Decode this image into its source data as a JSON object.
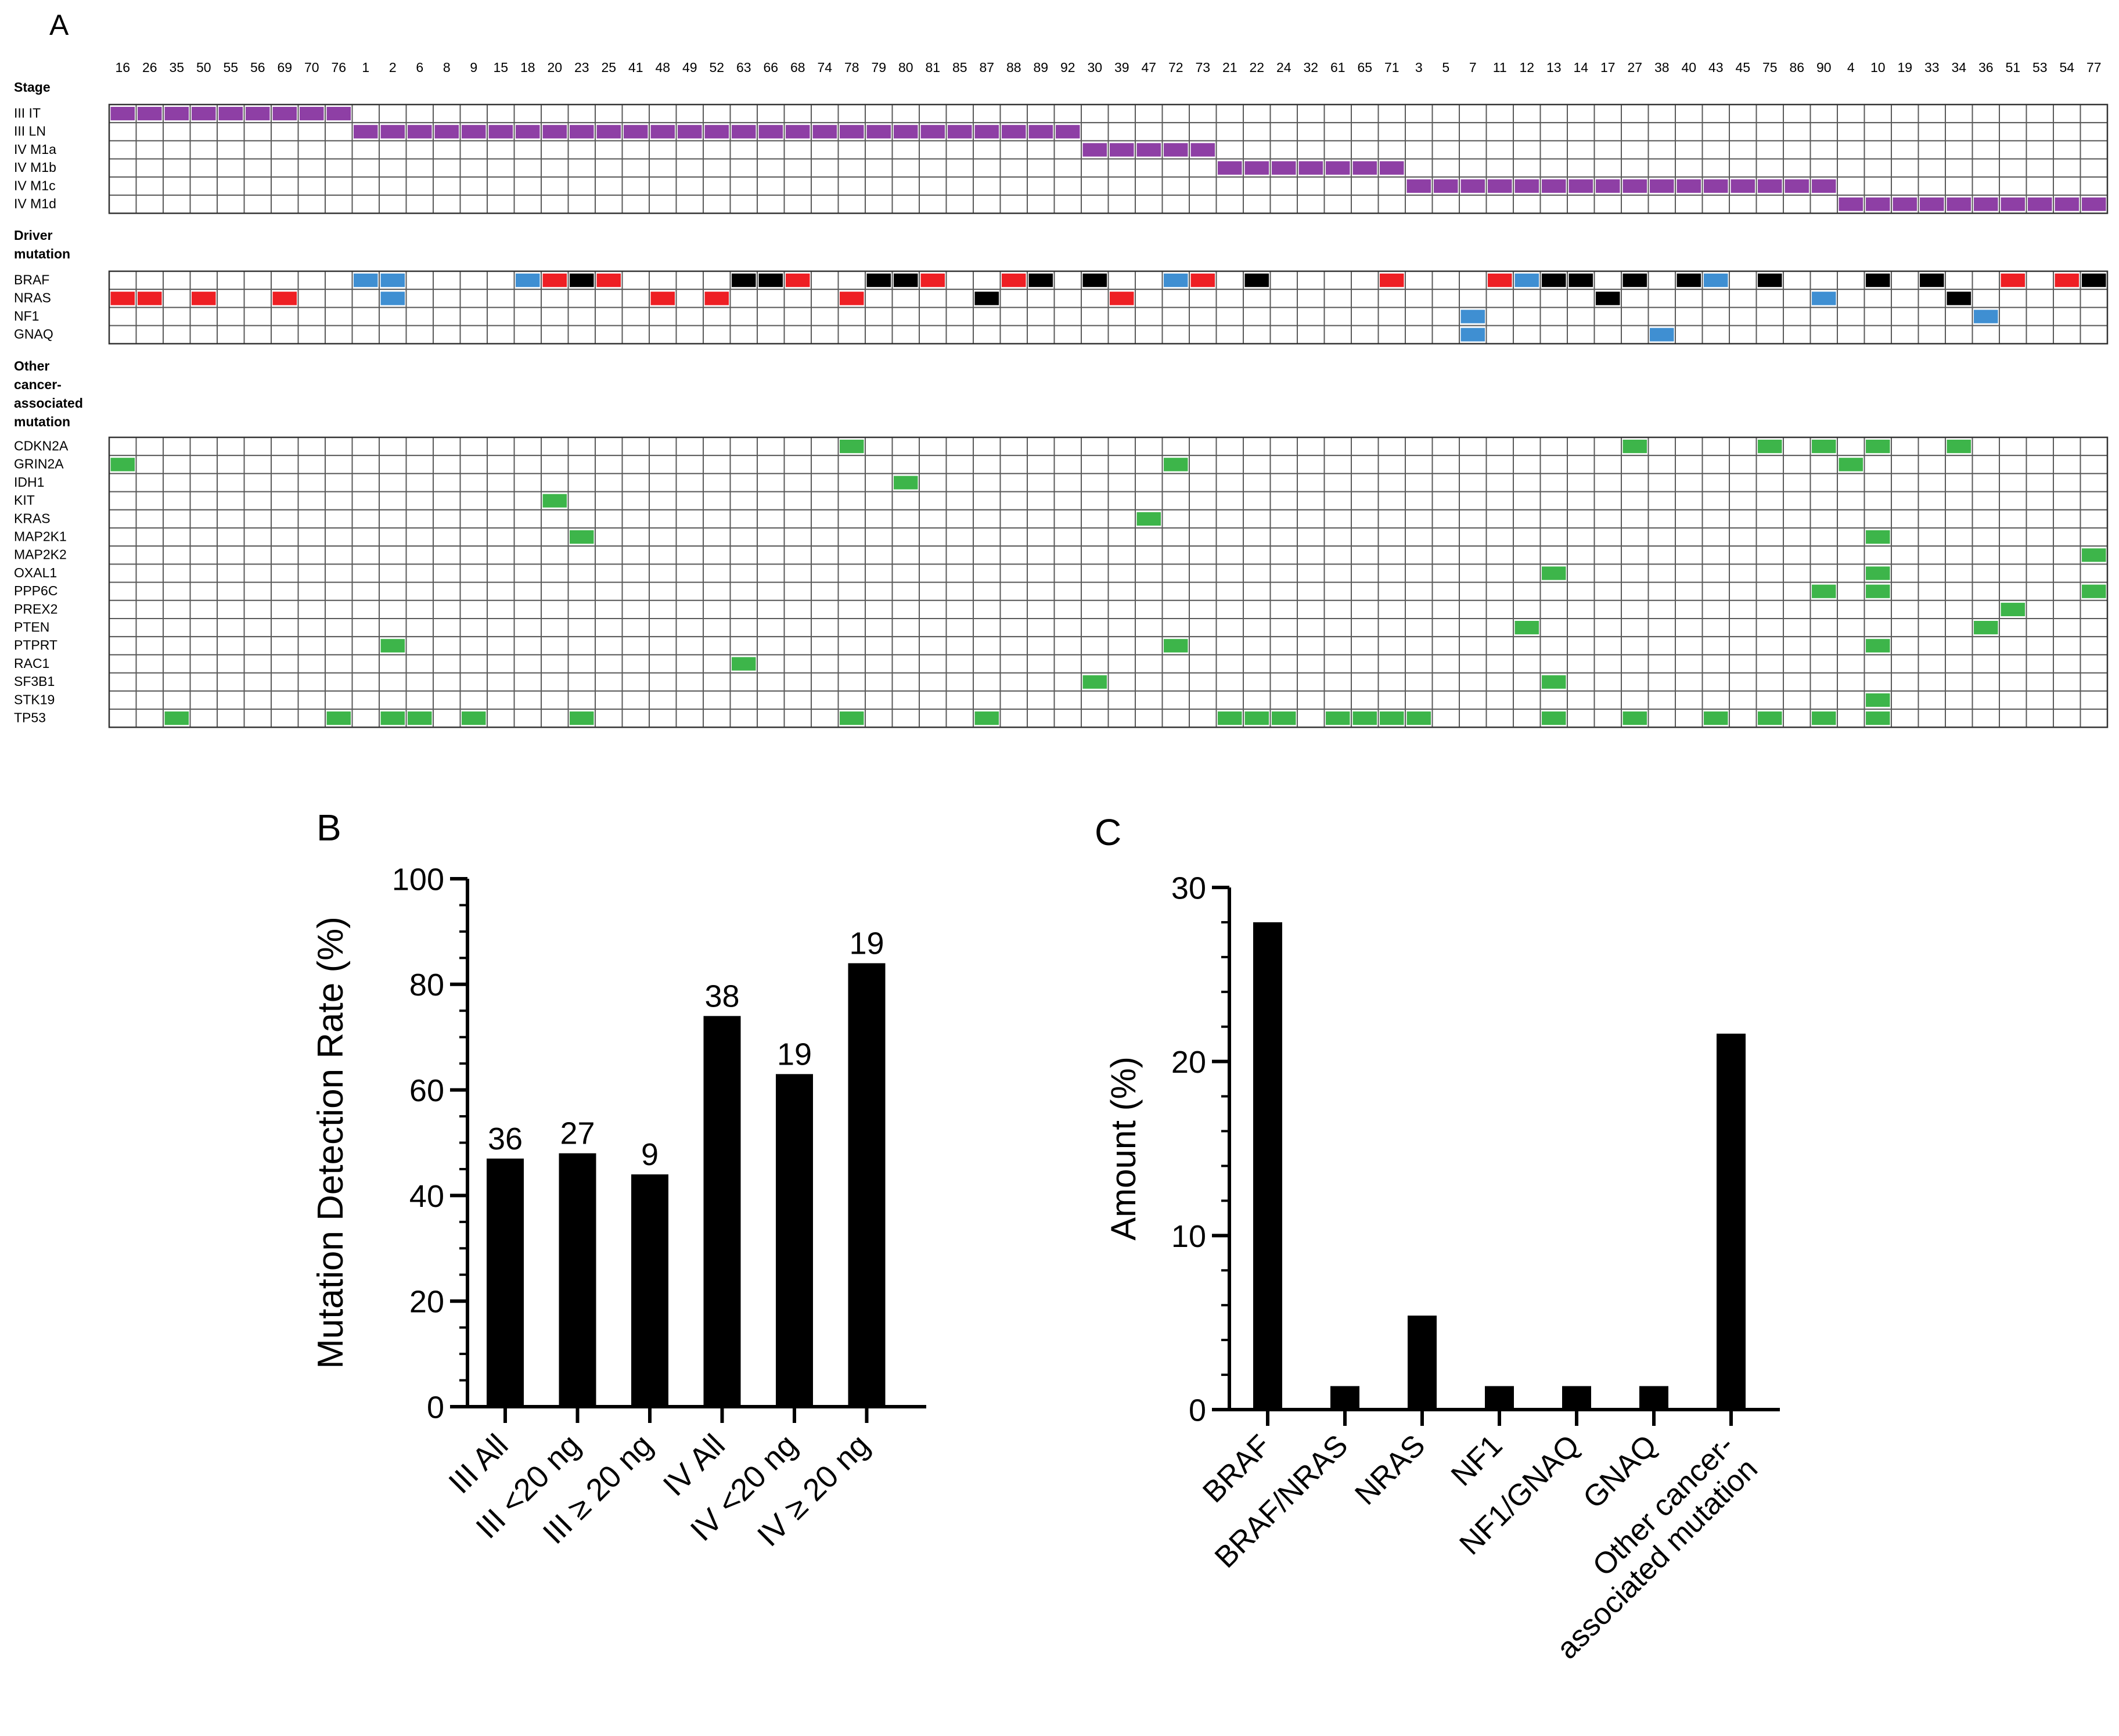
{
  "colors": {
    "stage": "#8e3fa5",
    "braf_v600": "#ee1f24",
    "non_v600": "#000000",
    "nras_q61": "#ee1f24",
    "non_q61": "#000000",
    "other_driver": "#3f8fd2",
    "other_mutation": "#3db54a",
    "bar": "#000000"
  },
  "chart_data": [
    {
      "panel": "A",
      "type": "table",
      "title": "A",
      "samples": [
        16,
        26,
        35,
        50,
        55,
        56,
        69,
        70,
        76,
        1,
        2,
        6,
        8,
        9,
        15,
        18,
        20,
        23,
        25,
        41,
        48,
        49,
        52,
        63,
        66,
        68,
        74,
        78,
        79,
        80,
        81,
        85,
        87,
        88,
        89,
        92,
        30,
        39,
        47,
        72,
        73,
        21,
        22,
        24,
        32,
        61,
        65,
        71,
        3,
        5,
        7,
        11,
        12,
        13,
        14,
        17,
        27,
        38,
        40,
        43,
        45,
        75,
        86,
        90,
        4,
        10,
        19,
        33,
        34,
        36,
        51,
        53,
        54,
        77
      ],
      "sections": [
        {
          "label": "Stage",
          "rows": [
            {
              "name": "III IT",
              "cells": {
                "16": "stage",
                "26": "stage",
                "35": "stage",
                "50": "stage",
                "55": "stage",
                "56": "stage",
                "69": "stage",
                "70": "stage",
                "76": "stage"
              }
            },
            {
              "name": "III LN",
              "cells": {
                "1": "stage",
                "2": "stage",
                "6": "stage",
                "8": "stage",
                "9": "stage",
                "15": "stage",
                "18": "stage",
                "20": "stage",
                "23": "stage",
                "25": "stage",
                "41": "stage",
                "48": "stage",
                "49": "stage",
                "52": "stage",
                "63": "stage",
                "66": "stage",
                "68": "stage",
                "74": "stage",
                "78": "stage",
                "79": "stage",
                "80": "stage",
                "81": "stage",
                "85": "stage",
                "87": "stage",
                "88": "stage",
                "89": "stage",
                "92": "stage"
              }
            },
            {
              "name": "IV M1a",
              "cells": {
                "30": "stage",
                "39": "stage",
                "47": "stage",
                "72": "stage",
                "73": "stage"
              }
            },
            {
              "name": "IV M1b",
              "cells": {
                "21": "stage",
                "22": "stage",
                "24": "stage",
                "32": "stage",
                "61": "stage",
                "65": "stage",
                "71": "stage"
              }
            },
            {
              "name": "IV M1c",
              "cells": {
                "3": "stage",
                "5": "stage",
                "7": "stage",
                "11": "stage",
                "12": "stage",
                "13": "stage",
                "14": "stage",
                "17": "stage",
                "27": "stage",
                "38": "stage",
                "40": "stage",
                "43": "stage",
                "45": "stage",
                "75": "stage",
                "86": "stage",
                "90": "stage"
              }
            },
            {
              "name": "IV M1d",
              "cells": {
                "4": "stage",
                "10": "stage",
                "19": "stage",
                "33": "stage",
                "34": "stage",
                "36": "stage",
                "51": "stage",
                "53": "stage",
                "54": "stage",
                "77": "stage"
              }
            }
          ]
        },
        {
          "label": "Driver mutation",
          "rows": [
            {
              "name": "BRAF",
              "cells": {
                "1": "other_driver",
                "2": "other_driver",
                "18": "other_driver",
                "20": "braf_v600",
                "23": "non_v600",
                "25": "braf_v600",
                "63": "non_v600",
                "66": "non_v600",
                "68": "braf_v600",
                "79": "non_v600",
                "80": "non_v600",
                "81": "braf_v600",
                "88": "braf_v600",
                "89": "non_v600",
                "30": "non_v600",
                "72": "other_driver",
                "73": "braf_v600",
                "22": "non_v600",
                "71": "braf_v600",
                "11": "braf_v600",
                "12": "other_driver",
                "13": "non_v600",
                "14": "non_v600",
                "27": "non_v600",
                "40": "non_v600",
                "43": "other_driver",
                "75": "non_v600",
                "10": "non_v600",
                "33": "non_v600",
                "51": "braf_v600",
                "54": "braf_v600",
                "77": "non_v600"
              }
            },
            {
              "name": "NRAS",
              "cells": {
                "16": "nras_q61",
                "26": "nras_q61",
                "50": "nras_q61",
                "69": "nras_q61",
                "2": "other_driver",
                "48": "nras_q61",
                "52": "nras_q61",
                "78": "nras_q61",
                "87": "non_q61",
                "39": "nras_q61",
                "17": "non_q61",
                "90": "other_driver",
                "34": "non_q61"
              }
            },
            {
              "name": "NF1",
              "cells": {
                "7": "other_driver",
                "36": "other_driver"
              }
            },
            {
              "name": "GNAQ",
              "cells": {
                "7": "other_driver",
                "38": "other_driver"
              }
            }
          ]
        },
        {
          "label": "Other cancer-associated mutation",
          "rows": [
            {
              "name": "CDKN2A",
              "cells": {
                "78": "other_mutation",
                "27": "other_mutation",
                "75": "other_mutation",
                "90": "other_mutation",
                "10": "other_mutation",
                "34": "other_mutation"
              }
            },
            {
              "name": "GRIN2A",
              "cells": {
                "16": "other_mutation",
                "72": "other_mutation",
                "4": "other_mutation"
              }
            },
            {
              "name": "IDH1",
              "cells": {
                "80": "other_mutation"
              }
            },
            {
              "name": "KIT",
              "cells": {
                "20": "other_mutation"
              }
            },
            {
              "name": "KRAS",
              "cells": {
                "47": "other_mutation"
              }
            },
            {
              "name": "MAP2K1",
              "cells": {
                "23": "other_mutation",
                "10": "other_mutation"
              }
            },
            {
              "name": "MAP2K2",
              "cells": {
                "77": "other_mutation"
              }
            },
            {
              "name": "OXAL1",
              "cells": {
                "13": "other_mutation",
                "10": "other_mutation"
              }
            },
            {
              "name": "PPP6C",
              "cells": {
                "90": "other_mutation",
                "10": "other_mutation",
                "77": "other_mutation"
              }
            },
            {
              "name": "PREX2",
              "cells": {
                "51": "other_mutation"
              }
            },
            {
              "name": "PTEN",
              "cells": {
                "12": "other_mutation",
                "36": "other_mutation"
              }
            },
            {
              "name": "PTPRT",
              "cells": {
                "2": "other_mutation",
                "72": "other_mutation",
                "10": "other_mutation"
              }
            },
            {
              "name": "RAC1",
              "cells": {
                "63": "other_mutation"
              }
            },
            {
              "name": "SF3B1",
              "cells": {
                "30": "other_mutation",
                "13": "other_mutation"
              }
            },
            {
              "name": "STK19",
              "cells": {
                "10": "other_mutation"
              }
            },
            {
              "name": "TP53",
              "cells": {
                "35": "other_mutation",
                "76": "other_mutation",
                "2": "other_mutation",
                "6": "other_mutation",
                "9": "other_mutation",
                "23": "other_mutation",
                "78": "other_mutation",
                "87": "other_mutation",
                "21": "other_mutation",
                "22": "other_mutation",
                "24": "other_mutation",
                "61": "other_mutation",
                "65": "other_mutation",
                "71": "other_mutation",
                "3": "other_mutation",
                "13": "other_mutation",
                "27": "other_mutation",
                "43": "other_mutation",
                "75": "other_mutation",
                "90": "other_mutation",
                "10": "other_mutation"
              }
            }
          ]
        }
      ]
    },
    {
      "panel": "B",
      "type": "bar",
      "title": "B",
      "categories": [
        "III All",
        "III <20 ng",
        "III ≥ 20 ng",
        "IV  All",
        "IV <20 ng",
        "IV ≥ 20 ng"
      ],
      "values": [
        47,
        48,
        44,
        74,
        63,
        84
      ],
      "data_labels": [
        "36",
        "27",
        "9",
        "38",
        "19",
        "19"
      ],
      "ylabel": "Mutation Detection Rate (%)",
      "xlabel": "",
      "ylim": [
        0,
        100
      ],
      "yticks": [
        0,
        20,
        40,
        60,
        80,
        100
      ]
    },
    {
      "panel": "C",
      "type": "bar",
      "title": "C",
      "categories": [
        "BRAF",
        "BRAF/NRAS",
        "NRAS",
        "NF1",
        "NF1/GNAQ",
        "GNAQ",
        "Other cancer-\nassociated mutation"
      ],
      "values": [
        28,
        1.35,
        5.4,
        1.35,
        1.35,
        1.35,
        21.6
      ],
      "ylabel": "Amount (%)",
      "xlabel": "",
      "ylim": [
        0,
        30
      ],
      "yticks": [
        0,
        10,
        20,
        30
      ]
    }
  ]
}
